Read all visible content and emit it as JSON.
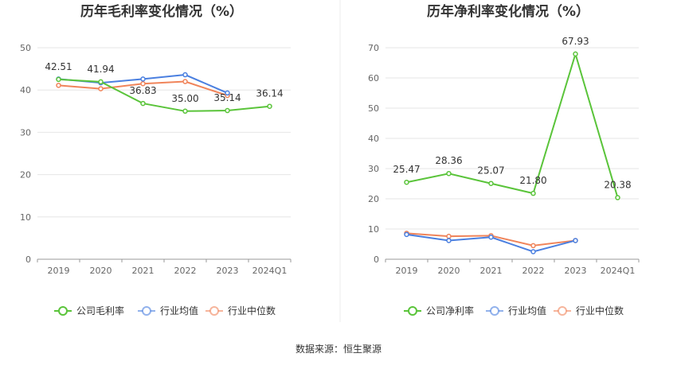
{
  "source_text": "数据来源：恒生聚源",
  "chart_data": [
    {
      "type": "line",
      "title": "历年毛利率变化情况（%）",
      "categories": [
        "2019",
        "2020",
        "2021",
        "2022",
        "2023",
        "2024Q1"
      ],
      "ylim": [
        0,
        50
      ],
      "yticks": [
        0,
        10,
        20,
        30,
        40,
        50
      ],
      "grid": true,
      "legend_position": "bottom",
      "series": [
        {
          "name": "公司毛利率",
          "color": "#5ac43a",
          "values": [
            42.51,
            41.94,
            36.83,
            35.0,
            35.14,
            36.14
          ],
          "labels": [
            "42.51",
            "41.94",
            "36.83",
            "35.00",
            "35.14",
            "36.14"
          ]
        },
        {
          "name": "行业均值",
          "color": "#4a7fe0",
          "values": [
            42.6,
            41.7,
            42.6,
            43.6,
            39.3,
            null
          ],
          "labels": []
        },
        {
          "name": "行业中位数",
          "color": "#f0845a",
          "values": [
            41.1,
            40.3,
            41.5,
            42.0,
            38.7,
            null
          ],
          "labels": []
        }
      ]
    },
    {
      "type": "line",
      "title": "历年净利率变化情况（%）",
      "categories": [
        "2019",
        "2020",
        "2021",
        "2022",
        "2023",
        "2024Q1"
      ],
      "ylim": [
        0,
        70
      ],
      "yticks": [
        0,
        10,
        20,
        30,
        40,
        50,
        60,
        70
      ],
      "grid": true,
      "legend_position": "bottom",
      "series": [
        {
          "name": "公司净利率",
          "color": "#5ac43a",
          "values": [
            25.47,
            28.36,
            25.07,
            21.8,
            67.93,
            20.38
          ],
          "labels": [
            "25.47",
            "28.36",
            "25.07",
            "21.80",
            "67.93",
            "20.38"
          ]
        },
        {
          "name": "行业均值",
          "color": "#4a7fe0",
          "values": [
            8.2,
            6.2,
            7.3,
            2.5,
            6.2,
            null
          ],
          "labels": []
        },
        {
          "name": "行业中位数",
          "color": "#f0845a",
          "values": [
            8.6,
            7.6,
            7.8,
            4.5,
            6.2,
            null
          ],
          "labels": []
        }
      ]
    }
  ]
}
